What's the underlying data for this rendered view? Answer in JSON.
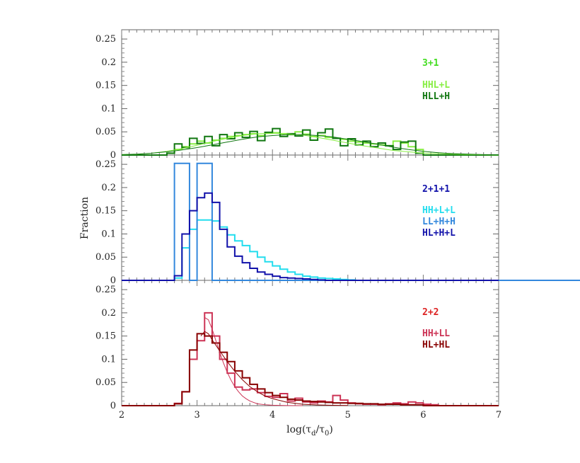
{
  "chart_data": {
    "type": "histogram",
    "xlabel": "log(τd/τ0)",
    "ylabel": "Fraction",
    "xlim": [
      2,
      7
    ],
    "x_ticks": [
      2,
      3,
      4,
      5,
      6,
      7
    ],
    "bin_width": 0.1,
    "panels": [
      {
        "id": "top",
        "group_label": "3+1",
        "group_color": "#44dd22",
        "ylim": [
          0,
          0.27
        ],
        "y_ticks": [
          "0",
          "0.05",
          "0.1",
          "0.15",
          "0.2",
          "0.25"
        ],
        "series": [
          {
            "name": "HHL+L",
            "color": "#88ee44",
            "style": "hist",
            "x_start": 2.6,
            "values": [
              0.004,
              0.012,
              0.018,
              0.024,
              0.03,
              0.026,
              0.032,
              0.036,
              0.04,
              0.042,
              0.044,
              0.046,
              0.042,
              0.047,
              0.048,
              0.046,
              0.044,
              0.05,
              0.045,
              0.04,
              0.042,
              0.038,
              0.036,
              0.034,
              0.03,
              0.028,
              0.026,
              0.024,
              0.022,
              0.02,
              0.03,
              0.026,
              0.018,
              0.012
            ]
          },
          {
            "name": "HLL+H",
            "color": "#117711",
            "style": "hist",
            "x_start": 2.6,
            "values": [
              0.004,
              0.024,
              0.016,
              0.036,
              0.025,
              0.04,
              0.02,
              0.044,
              0.035,
              0.048,
              0.038,
              0.051,
              0.031,
              0.049,
              0.057,
              0.04,
              0.046,
              0.041,
              0.054,
              0.032,
              0.048,
              0.056,
              0.036,
              0.02,
              0.035,
              0.022,
              0.03,
              0.018,
              0.026,
              0.02,
              0.012,
              0.028,
              0.03,
              0.004
            ]
          },
          {
            "name": "fit-light",
            "color": "#88ee44",
            "style": "curve",
            "x": [
              2.0,
              2.2,
              2.4,
              2.6,
              2.8,
              3.0,
              3.2,
              3.4,
              3.6,
              3.8,
              4.0,
              4.2,
              4.4,
              4.6,
              4.8,
              5.0,
              5.2,
              5.4,
              5.6,
              5.8,
              6.0,
              6.2,
              6.4,
              6.6,
              6.8,
              7.0
            ],
            "y": [
              0.001,
              0.002,
              0.004,
              0.008,
              0.014,
              0.021,
              0.029,
              0.036,
              0.042,
              0.046,
              0.047,
              0.046,
              0.043,
              0.038,
              0.032,
              0.026,
              0.02,
              0.015,
              0.01,
              0.007,
              0.004,
              0.003,
              0.002,
              0.001,
              0.0005,
              0.0002
            ]
          },
          {
            "name": "fit-dark",
            "color": "#117711",
            "style": "curve",
            "x": [
              2.0,
              2.2,
              2.4,
              2.6,
              2.8,
              3.0,
              3.2,
              3.4,
              3.6,
              3.8,
              4.0,
              4.2,
              4.4,
              4.6,
              4.8,
              5.0,
              5.2,
              5.4,
              5.6,
              5.8,
              6.0,
              6.2,
              6.4,
              6.6,
              6.8,
              7.0
            ],
            "y": [
              0.001,
              0.002,
              0.004,
              0.007,
              0.011,
              0.016,
              0.022,
              0.028,
              0.034,
              0.039,
              0.042,
              0.044,
              0.044,
              0.042,
              0.039,
              0.034,
              0.029,
              0.023,
              0.017,
              0.012,
              0.008,
              0.005,
              0.003,
              0.002,
              0.001,
              0.0005
            ]
          }
        ]
      },
      {
        "id": "middle",
        "group_label": "2+1+1",
        "group_color": "#1111aa",
        "ylim": [
          0,
          0.27
        ],
        "y_ticks": [
          "0",
          "0.05",
          "0.1",
          "0.15",
          "0.2",
          "0.25"
        ],
        "series": [
          {
            "name": "HH+L+L",
            "color": "#22ddee",
            "style": "hist",
            "x_start": 2.6,
            "values": [
              0.0,
              0.005,
              0.07,
              0.11,
              0.13,
              0.13,
              0.128,
              0.115,
              0.098,
              0.085,
              0.075,
              0.062,
              0.05,
              0.04,
              0.031,
              0.024,
              0.018,
              0.013,
              0.009,
              0.007,
              0.005,
              0.004,
              0.003,
              0.002,
              0.001
            ]
          },
          {
            "name": "LL+H+H",
            "color": "#3388dd",
            "style": "hist",
            "x_start": 2.6,
            "values": [
              0.0,
              0.252,
              0.252,
              0.0,
              0.252,
              0.252,
              0.0,
              0.0,
              0.0,
              0.0,
              0.0,
              0.0,
              0.0,
              0.0,
              0.0,
              0.0,
              0.0,
              0.0,
              0.0,
              0.0,
              0.0,
              0.0,
              0.0,
              0.0,
              0.0,
              0.0,
              0.0,
              0.0,
              0.0,
              0.0,
              0.0,
              0.0,
              0.0,
              0.0,
              0.0,
              0.0,
              0.0,
              0.0,
              0.0,
              0.0,
              0.0,
              0.0,
              0.0,
              0.0,
              0.0,
              0.0,
              0.0,
              0.0,
              0.0,
              0.0,
              0.0,
              0.0,
              0.0,
              0.0,
              0.0,
              0.0,
              0.0,
              0.0,
              0.0,
              0.0,
              0.0,
              0.0,
              0.0,
              0.0,
              0.0,
              0.0,
              0.0,
              0.0,
              0.0,
              0.0,
              0.0,
              0.0,
              0.0,
              0.0,
              0.0,
              0.0,
              0.0,
              0.0,
              0.0,
              0.0,
              0.0,
              0.0,
              0.0,
              0.0,
              0.0,
              0.0,
              0.0,
              0.0,
              0.0,
              0.0,
              0.0,
              0.0,
              0.0,
              0.0,
              0.0,
              0.252,
              0.0
            ]
          },
          {
            "name": "HL+H+L",
            "color": "#1111aa",
            "style": "hist",
            "x_start": 2.6,
            "values": [
              0.0,
              0.01,
              0.1,
              0.15,
              0.178,
              0.188,
              0.168,
              0.11,
              0.072,
              0.052,
              0.038,
              0.026,
              0.018,
              0.013,
              0.009,
              0.006,
              0.005,
              0.004,
              0.003,
              0.002,
              0.001
            ]
          }
        ]
      },
      {
        "id": "bottom",
        "group_label": "2+2",
        "group_color": "#dd2222",
        "ylim": [
          0,
          0.27
        ],
        "y_ticks": [
          "0",
          "0.05",
          "0.1",
          "0.15",
          "0.2",
          "0.25"
        ],
        "series": [
          {
            "name": "HH+LL",
            "color": "#cc3355",
            "style": "hist",
            "x_start": 2.7,
            "values": [
              0.005,
              0.03,
              0.1,
              0.14,
              0.2,
              0.15,
              0.1,
              0.07,
              0.04,
              0.034,
              0.036,
              0.028,
              0.02,
              0.018,
              0.026,
              0.01,
              0.016,
              0.008,
              0.006,
              0.01,
              0.008,
              0.022,
              0.012,
              0.006,
              0.004,
              0.003,
              0.003,
              0.002,
              0.004,
              0.006,
              0.004,
              0.008,
              0.006,
              0.003,
              0.002
            ]
          },
          {
            "name": "HL+HL",
            "color": "#880000",
            "style": "hist",
            "x_start": 2.7,
            "values": [
              0.004,
              0.03,
              0.12,
              0.155,
              0.15,
              0.135,
              0.115,
              0.095,
              0.075,
              0.06,
              0.046,
              0.036,
              0.028,
              0.022,
              0.018,
              0.014,
              0.012,
              0.01,
              0.009,
              0.008,
              0.007,
              0.006,
              0.006,
              0.005,
              0.005,
              0.004,
              0.004,
              0.003,
              0.003,
              0.003,
              0.002,
              0.002,
              0.002
            ]
          },
          {
            "name": "fit-light",
            "color": "#cc3355",
            "style": "curve",
            "x": [
              3.1,
              3.15,
              3.2,
              3.25,
              3.3,
              3.35,
              3.4,
              3.45,
              3.5,
              3.55,
              3.6,
              3.65,
              3.7,
              3.75,
              3.8,
              3.9,
              4.0,
              4.2,
              4.4
            ],
            "y": [
              0.19,
              0.185,
              0.165,
              0.14,
              0.115,
              0.092,
              0.072,
              0.055,
              0.041,
              0.03,
              0.021,
              0.015,
              0.01,
              0.007,
              0.004,
              0.002,
              0.001,
              0.0002,
              0.0
            ]
          },
          {
            "name": "fit-dark",
            "color": "#880000",
            "style": "curve",
            "x": [
              3.05,
              3.1,
              3.15,
              3.2,
              3.3,
              3.4,
              3.5,
              3.6,
              3.7,
              3.8,
              3.9,
              4.0,
              4.2,
              4.4,
              4.6,
              4.8,
              5.0
            ],
            "y": [
              0.15,
              0.16,
              0.155,
              0.142,
              0.118,
              0.095,
              0.074,
              0.056,
              0.041,
              0.03,
              0.021,
              0.015,
              0.007,
              0.003,
              0.0015,
              0.0007,
              0.0003
            ]
          }
        ]
      }
    ]
  },
  "legend": {
    "top": [
      "HHL+L",
      "HLL+H"
    ],
    "middle": [
      "HH+L+L",
      "LL+H+H",
      "HL+H+L"
    ],
    "bottom": [
      "HH+LL",
      "HL+HL"
    ]
  }
}
